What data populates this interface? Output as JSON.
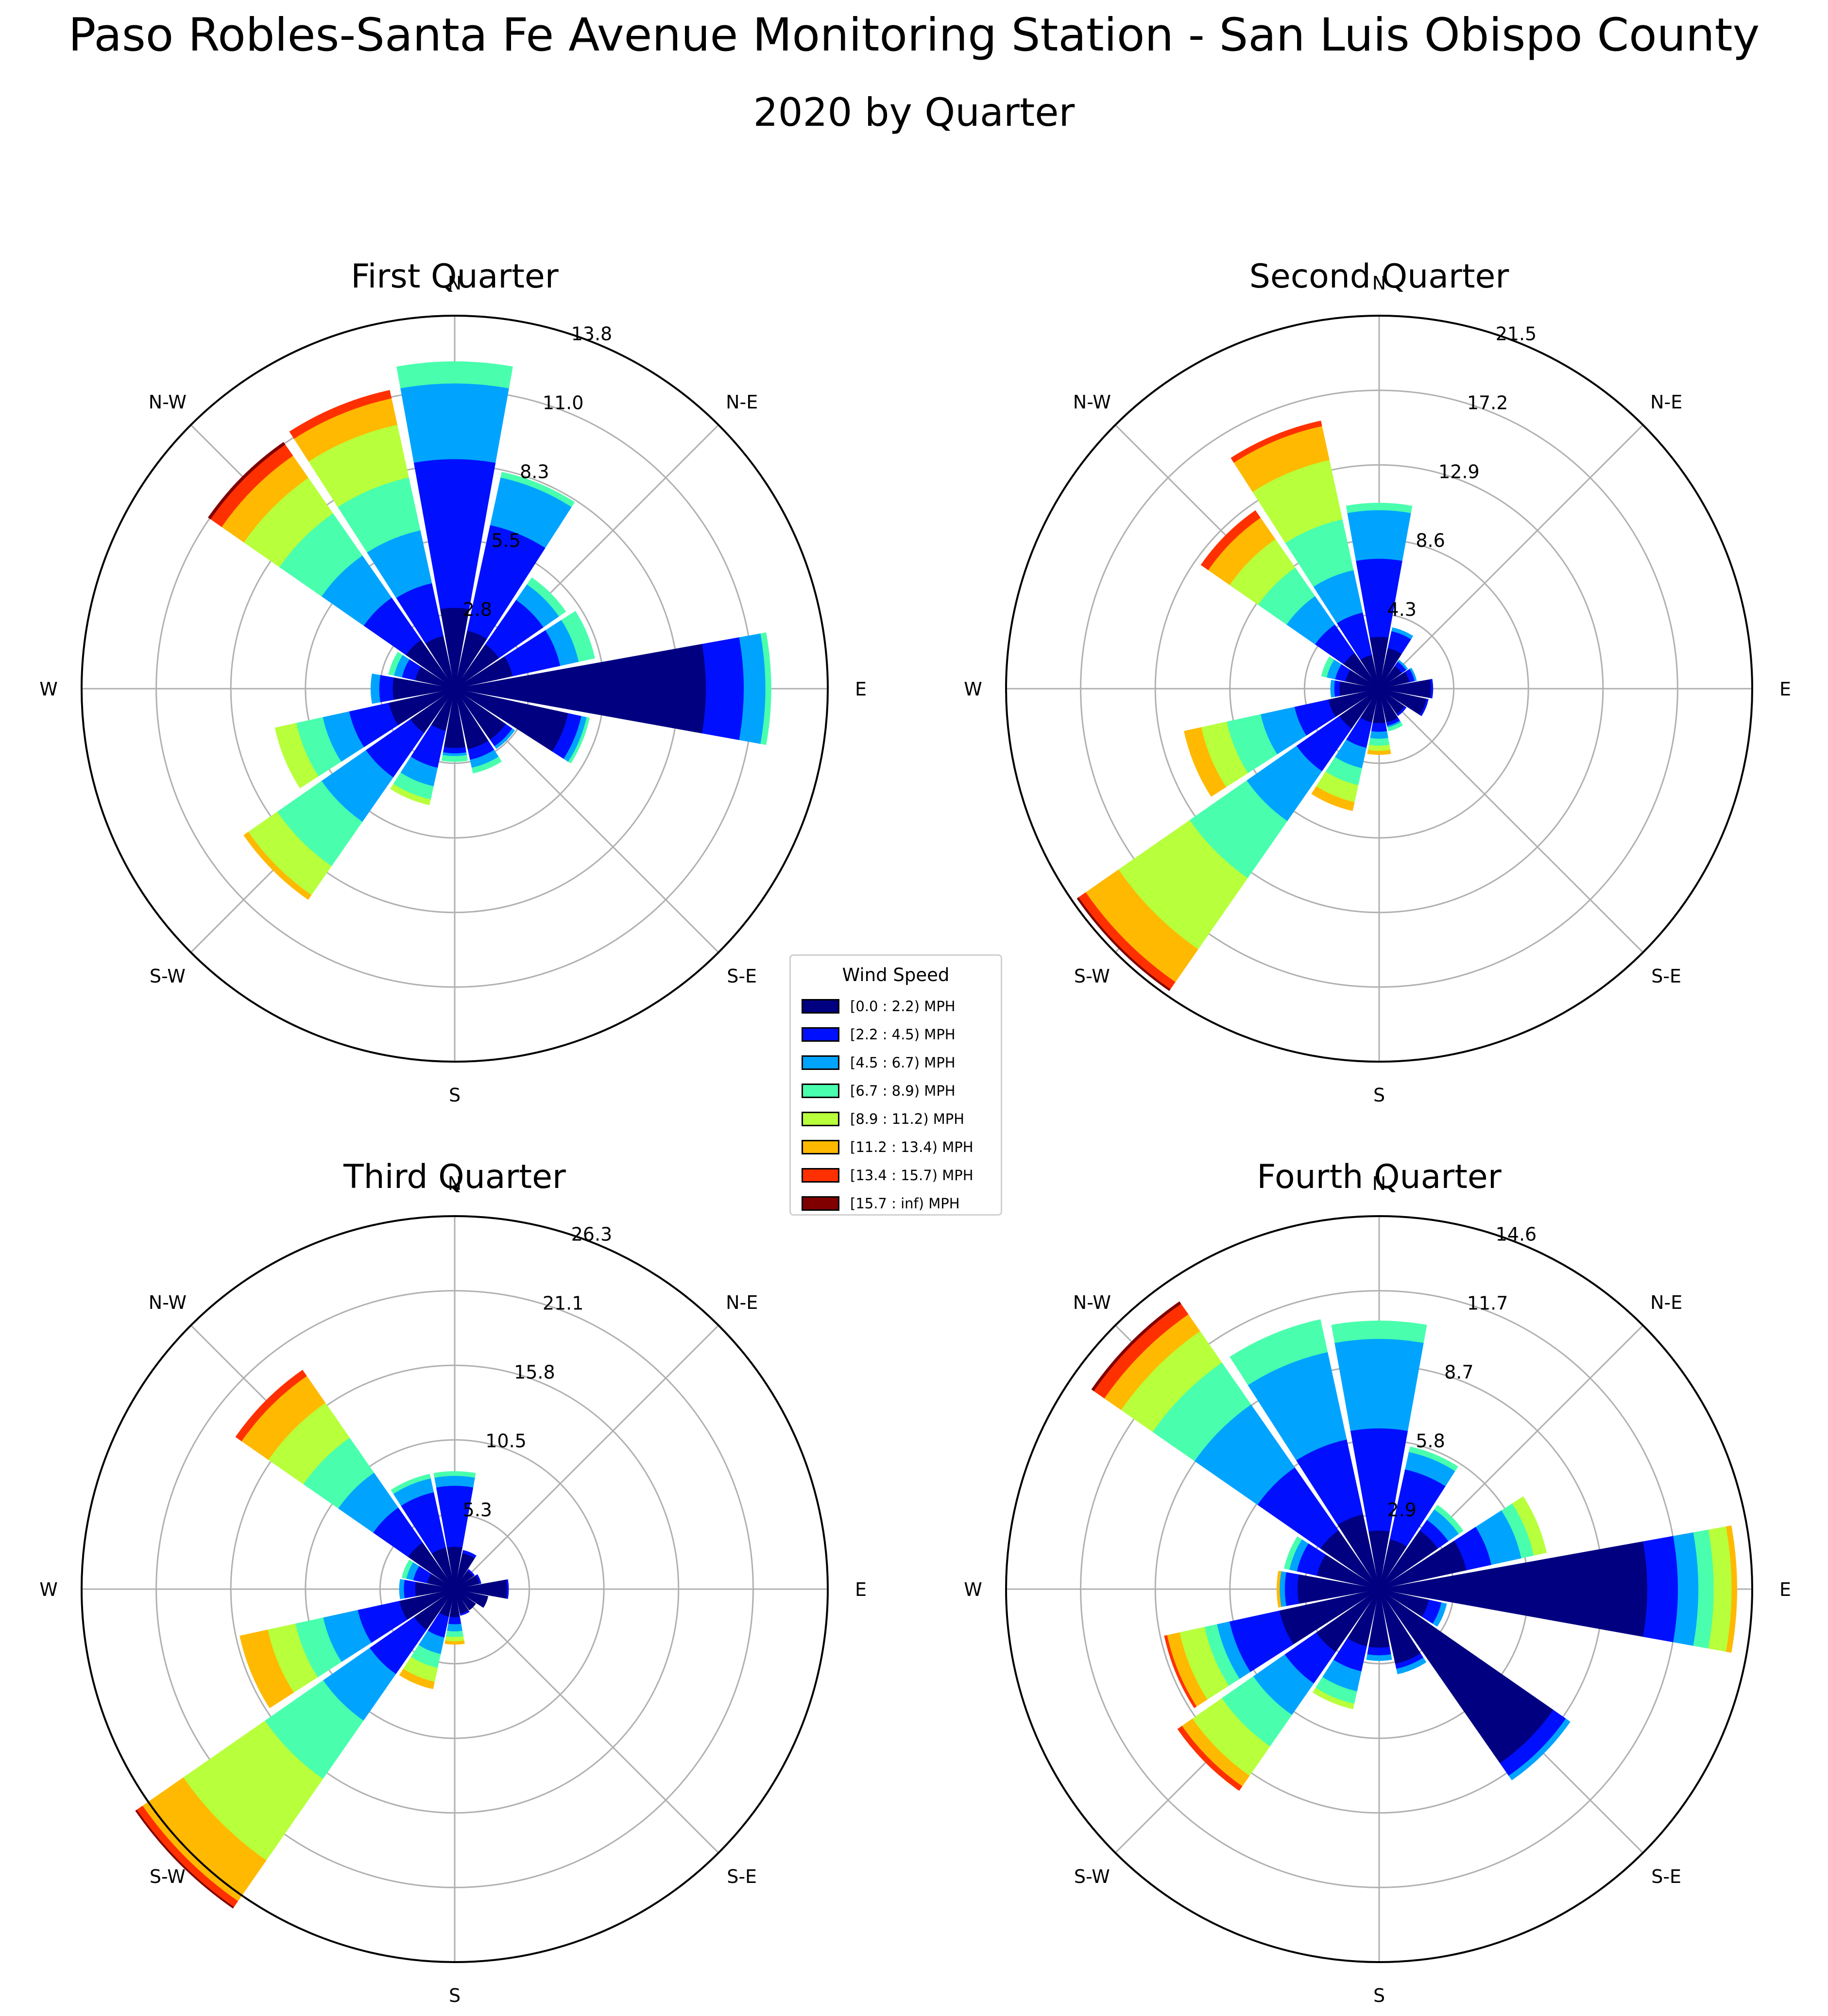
{
  "title": "Paso Robles-Santa Fe Avenue Monitoring Station - San Luis Obispo County",
  "subtitle": "2020 by Quarter",
  "directions": [
    "N",
    "N-E",
    "E",
    "S-E",
    "S",
    "S-W",
    "W",
    "N-W"
  ],
  "legend": {
    "title": "Wind Speed",
    "bins": [
      {
        "label": "[0.0 : 2.2) MPH",
        "color": "#000080"
      },
      {
        "label": "[2.2 : 4.5) MPH",
        "color": "#0010ff"
      },
      {
        "label": "[4.5 : 6.7) MPH",
        "color": "#00a4ff"
      },
      {
        "label": "[6.7 : 8.9) MPH",
        "color": "#49ffad"
      },
      {
        "label": "[8.9 : 11.2) MPH",
        "color": "#b8ff3c"
      },
      {
        "label": "[11.2 : 13.4) MPH",
        "color": "#ffb900"
      },
      {
        "label": "[13.4 : 15.7) MPH",
        "color": "#ff3000"
      },
      {
        "label": "[15.7 : inf) MPH",
        "color": "#800000"
      }
    ]
  },
  "chart_data": [
    {
      "type": "windrose",
      "title": "First Quarter",
      "rmax": 13.8,
      "rticks": [
        "2.8",
        "5.5",
        "8.3",
        "11.0",
        "13.8"
      ],
      "sectors": [
        {
          "dir_deg": 0,
          "values": [
            3.0,
            5.5,
            2.8,
            0.8,
            0,
            0,
            0,
            0
          ]
        },
        {
          "dir_deg": 22.5,
          "values": [
            2.2,
            4.0,
            1.8,
            0.2,
            0,
            0,
            0,
            0
          ]
        },
        {
          "dir_deg": 45,
          "values": [
            2.0,
            2.0,
            0.7,
            0.3,
            0,
            0,
            0,
            0
          ]
        },
        {
          "dir_deg": 67.5,
          "values": [
            2.2,
            1.8,
            0.7,
            0.6,
            0,
            0,
            0,
            0
          ]
        },
        {
          "dir_deg": 90,
          "values": [
            9.3,
            1.4,
            0.8,
            0.2,
            0,
            0,
            0,
            0
          ]
        },
        {
          "dir_deg": 112.5,
          "values": [
            4.3,
            0.5,
            0.2,
            0.1,
            0,
            0,
            0,
            0
          ]
        },
        {
          "dir_deg": 135,
          "values": [
            2.3,
            0.3,
            0.1,
            0,
            0,
            0,
            0,
            0
          ]
        },
        {
          "dir_deg": 157.5,
          "values": [
            2.3,
            0.4,
            0.3,
            0.2,
            0,
            0,
            0,
            0
          ]
        },
        {
          "dir_deg": 180,
          "values": [
            2.2,
            0.2,
            0.1,
            0.2,
            0,
            0,
            0,
            0
          ]
        },
        {
          "dir_deg": 202.5,
          "values": [
            1.6,
            1.4,
            0.7,
            0.5,
            0.2,
            0,
            0,
            0
          ]
        },
        {
          "dir_deg": 225,
          "values": [
            2.0,
            2.0,
            2.0,
            2.0,
            1.3,
            0.2,
            0,
            0
          ]
        },
        {
          "dir_deg": 247.5,
          "values": [
            2.5,
            1.5,
            1.0,
            1.0,
            0.8,
            0,
            0,
            0
          ]
        },
        {
          "dir_deg": 270,
          "values": [
            2.3,
            0.5,
            0.3,
            0,
            0,
            0,
            0,
            0
          ]
        },
        {
          "dir_deg": 292.5,
          "values": [
            1.5,
            0.5,
            0.3,
            0.2,
            0,
            0,
            0,
            0
          ]
        },
        {
          "dir_deg": 315,
          "values": [
            2.2,
            1.9,
            1.9,
            1.9,
            1.6,
            1.0,
            0.5,
            0.1
          ]
        },
        {
          "dir_deg": 337.5,
          "values": [
            2.0,
            2.0,
            2.0,
            2.0,
            2.0,
            1.0,
            0.3,
            0
          ]
        }
      ]
    },
    {
      "type": "windrose",
      "title": "Second Quarter",
      "rmax": 21.5,
      "rticks": [
        "4.3",
        "8.6",
        "12.9",
        "17.2",
        "21.5"
      ],
      "sectors": [
        {
          "dir_deg": 0,
          "values": [
            3.0,
            4.5,
            2.8,
            0.4,
            0,
            0,
            0,
            0
          ]
        },
        {
          "dir_deg": 22.5,
          "values": [
            2.4,
            1.0,
            0.2,
            0,
            0,
            0,
            0,
            0
          ]
        },
        {
          "dir_deg": 45,
          "values": [
            1.6,
            0.3,
            0.1,
            0,
            0,
            0,
            0,
            0
          ]
        },
        {
          "dir_deg": 67.5,
          "values": [
            1.8,
            0.3,
            0.1,
            0,
            0,
            0,
            0,
            0
          ]
        },
        {
          "dir_deg": 90,
          "values": [
            3.0,
            0.1,
            0,
            0,
            0,
            0,
            0,
            0
          ]
        },
        {
          "dir_deg": 112.5,
          "values": [
            2.8,
            0.1,
            0,
            0,
            0,
            0,
            0,
            0
          ]
        },
        {
          "dir_deg": 135,
          "values": [
            1.8,
            0.1,
            0,
            0,
            0,
            0,
            0,
            0
          ]
        },
        {
          "dir_deg": 157.5,
          "values": [
            2.0,
            0.2,
            0.1,
            0.2,
            0,
            0,
            0,
            0
          ]
        },
        {
          "dir_deg": 180,
          "values": [
            2.0,
            0.5,
            0.4,
            0.4,
            0.3,
            0.2,
            0,
            0
          ]
        },
        {
          "dir_deg": 202.5,
          "values": [
            2.0,
            1.5,
            1.2,
            1.0,
            1.0,
            0.5,
            0,
            0
          ]
        },
        {
          "dir_deg": 225,
          "values": [
            2.8,
            3.0,
            3.5,
            4.0,
            5.0,
            2.3,
            0.5,
            0.1
          ]
        },
        {
          "dir_deg": 247.5,
          "values": [
            3.0,
            2.0,
            2.0,
            2.0,
            1.5,
            1.0,
            0,
            0
          ]
        },
        {
          "dir_deg": 270,
          "values": [
            2.3,
            0.3,
            0.2,
            0,
            0,
            0,
            0,
            0
          ]
        },
        {
          "dir_deg": 292.5,
          "values": [
            2.0,
            0.6,
            0.5,
            0.3,
            0,
            0,
            0,
            0
          ]
        },
        {
          "dir_deg": 315,
          "values": [
            2.5,
            2.0,
            2.0,
            2.0,
            2.0,
            1.5,
            0.5,
            0
          ]
        },
        {
          "dir_deg": 337.5,
          "values": [
            2.0,
            2.5,
            2.5,
            3.0,
            3.5,
            2.0,
            0.3,
            0
          ]
        }
      ]
    },
    {
      "type": "windrose",
      "title": "Third Quarter",
      "rmax": 26.3,
      "rticks": [
        "5.3",
        "10.5",
        "15.8",
        "21.1",
        "26.3"
      ],
      "sectors": [
        {
          "dir_deg": 0,
          "values": [
            3.0,
            4.3,
            0.7,
            0.3,
            0,
            0,
            0,
            0
          ]
        },
        {
          "dir_deg": 22.5,
          "values": [
            2.6,
            0.2,
            0,
            0,
            0,
            0,
            0,
            0
          ]
        },
        {
          "dir_deg": 45,
          "values": [
            1.6,
            0.1,
            0,
            0,
            0,
            0,
            0,
            0
          ]
        },
        {
          "dir_deg": 67.5,
          "values": [
            1.8,
            0.1,
            0,
            0,
            0,
            0,
            0,
            0
          ]
        },
        {
          "dir_deg": 90,
          "values": [
            3.7,
            0.1,
            0,
            0,
            0,
            0,
            0,
            0
          ]
        },
        {
          "dir_deg": 112.5,
          "values": [
            2.4,
            0,
            0,
            0,
            0,
            0,
            0,
            0
          ]
        },
        {
          "dir_deg": 135,
          "values": [
            1.8,
            0,
            0,
            0,
            0,
            0,
            0,
            0
          ]
        },
        {
          "dir_deg": 157.5,
          "values": [
            1.8,
            0.1,
            0,
            0,
            0,
            0,
            0,
            0
          ]
        },
        {
          "dir_deg": 180,
          "values": [
            2.0,
            0.5,
            0.5,
            0.4,
            0.3,
            0.2,
            0,
            0
          ]
        },
        {
          "dir_deg": 202.5,
          "values": [
            2.0,
            1.5,
            1.2,
            1.0,
            1.0,
            0.5,
            0,
            0
          ]
        },
        {
          "dir_deg": 225,
          "values": [
            3.5,
            3.8,
            4.0,
            5.0,
            7.0,
            3.5,
            0.5,
            0.1
          ]
        },
        {
          "dir_deg": 247.5,
          "values": [
            4.0,
            3.0,
            2.5,
            2.0,
            2.0,
            2.0,
            0,
            0
          ]
        },
        {
          "dir_deg": 270,
          "values": [
            2.8,
            0.8,
            0.3,
            0,
            0,
            0,
            0,
            0
          ]
        },
        {
          "dir_deg": 292.5,
          "values": [
            2.0,
            1.0,
            0.5,
            0.3,
            0,
            0,
            0,
            0
          ]
        },
        {
          "dir_deg": 315,
          "values": [
            4.0,
            3.0,
            3.0,
            3.0,
            3.0,
            2.3,
            0.5,
            0
          ]
        },
        {
          "dir_deg": 337.5,
          "values": [
            3.0,
            4.0,
            1.0,
            0.3,
            0,
            0,
            0,
            0
          ]
        }
      ]
    },
    {
      "type": "windrose",
      "title": "Fourth Quarter",
      "rmax": 14.6,
      "rticks": [
        "2.9",
        "5.8",
        "8.7",
        "11.7",
        "14.6"
      ],
      "sectors": [
        {
          "dir_deg": 0,
          "values": [
            2.3,
            4.0,
            3.5,
            0.7,
            0,
            0,
            0,
            0
          ]
        },
        {
          "dir_deg": 22.5,
          "values": [
            2.0,
            2.8,
            0.7,
            0.2,
            0,
            0,
            0,
            0
          ]
        },
        {
          "dir_deg": 45,
          "values": [
            2.8,
            0.5,
            0.5,
            0.2,
            0,
            0,
            0,
            0
          ]
        },
        {
          "dir_deg": 67.5,
          "values": [
            3.5,
            1.0,
            1.2,
            0.5,
            0.5,
            0,
            0,
            0
          ]
        },
        {
          "dir_deg": 90,
          "values": [
            10.5,
            1.2,
            0.8,
            0.6,
            0.7,
            0.2,
            0,
            0
          ]
        },
        {
          "dir_deg": 112.5,
          "values": [
            2.0,
            0.5,
            0.2,
            0,
            0,
            0,
            0,
            0
          ]
        },
        {
          "dir_deg": 135,
          "values": [
            8.3,
            0.6,
            0.2,
            0,
            0,
            0,
            0,
            0
          ]
        },
        {
          "dir_deg": 157.5,
          "values": [
            3.0,
            0.2,
            0.2,
            0,
            0,
            0,
            0,
            0
          ]
        },
        {
          "dir_deg": 180,
          "values": [
            2.3,
            0.3,
            0.2,
            0,
            0,
            0,
            0,
            0
          ]
        },
        {
          "dir_deg": 202.5,
          "values": [
            2.3,
            1.0,
            0.8,
            0.5,
            0.2,
            0,
            0,
            0
          ]
        },
        {
          "dir_deg": 225,
          "values": [
            3.0,
            1.5,
            1.5,
            1.5,
            1.4,
            0.5,
            0.2,
            0
          ]
        },
        {
          "dir_deg": 247.5,
          "values": [
            4.0,
            2.0,
            0.5,
            0.5,
            1.0,
            0.5,
            0.1,
            0
          ]
        },
        {
          "dir_deg": 270,
          "values": [
            3.2,
            0.5,
            0.2,
            0,
            0,
            0.1,
            0,
            0
          ]
        },
        {
          "dir_deg": 292.5,
          "values": [
            2.5,
            0.8,
            0.3,
            0.2,
            0,
            0,
            0,
            0
          ]
        },
        {
          "dir_deg": 315,
          "values": [
            2.8,
            3.0,
            3.0,
            2.0,
            1.5,
            0.8,
            0.5,
            0.1
          ]
        },
        {
          "dir_deg": 337.5,
          "values": [
            3.0,
            3.0,
            3.5,
            1.3,
            0,
            0,
            0,
            0
          ]
        }
      ]
    }
  ]
}
